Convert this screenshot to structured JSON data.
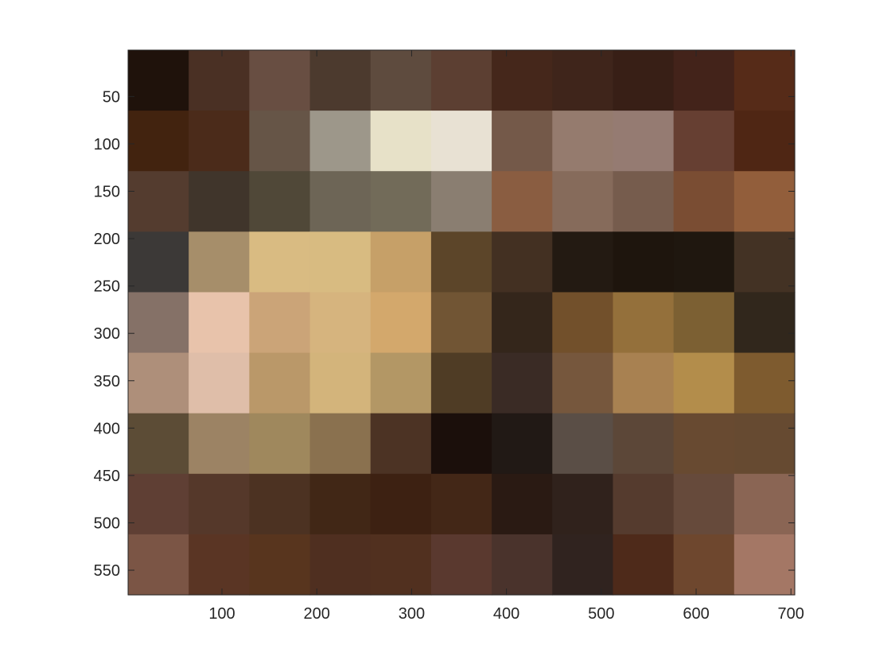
{
  "chart_data": {
    "type": "heatmap",
    "title": "",
    "xlabel": "",
    "ylabel": "",
    "xlim": [
      1,
      704
    ],
    "ylim": [
      1,
      576
    ],
    "y_reversed": true,
    "grid": false,
    "legend": "none",
    "x_ticks": [
      {
        "value": 100,
        "label": "100"
      },
      {
        "value": 200,
        "label": "200"
      },
      {
        "value": 300,
        "label": "300"
      },
      {
        "value": 400,
        "label": "400"
      },
      {
        "value": 500,
        "label": "500"
      },
      {
        "value": 600,
        "label": "600"
      },
      {
        "value": 700,
        "label": "700"
      }
    ],
    "y_ticks": [
      {
        "value": 50,
        "label": "50"
      },
      {
        "value": 100,
        "label": "100"
      },
      {
        "value": 150,
        "label": "150"
      },
      {
        "value": 200,
        "label": "200"
      },
      {
        "value": 250,
        "label": "250"
      },
      {
        "value": 300,
        "label": "300"
      },
      {
        "value": 350,
        "label": "350"
      },
      {
        "value": 400,
        "label": "400"
      },
      {
        "value": 450,
        "label": "450"
      },
      {
        "value": 500,
        "label": "500"
      },
      {
        "value": 550,
        "label": "550"
      }
    ],
    "cells": [
      [
        "#1f120b",
        "#4a3024",
        "#684e42",
        "#4c3a2e",
        "#5e4b3e",
        "#5c3f32",
        "#45271b",
        "#3f251b",
        "#381f16",
        "#43231a",
        "#562b18"
      ],
      [
        "#42230f",
        "#4b2b1a",
        "#665547",
        "#9d978a",
        "#e7e1c8",
        "#e8e1d3",
        "#745949",
        "#957b6e",
        "#957b72",
        "#663f32",
        "#4f2614"
      ],
      [
        "#543c2f",
        "#40352b",
        "#504838",
        "#6d6556",
        "#726b59",
        "#8a7e71",
        "#8a5d41",
        "#866b5b",
        "#765c4d",
        "#7a4d33",
        "#925e3b"
      ],
      [
        "#3c3937",
        "#a68e6a",
        "#d9bb82",
        "#d8bb81",
        "#c6a068",
        "#5c4529",
        "#433022",
        "#231a12",
        "#1e150d",
        "#1f170f",
        "#433224"
      ],
      [
        "#857167",
        "#e8c3ab",
        "#cba478",
        "#d6b47e",
        "#d3a86c",
        "#715534",
        "#34261b",
        "#72502b",
        "#94703b",
        "#7c6033",
        "#31271c"
      ],
      [
        "#ae8f7a",
        "#dfbea9",
        "#ba9869",
        "#d3b47b",
        "#b39765",
        "#4f3c25",
        "#3a2b25",
        "#76573d",
        "#a88151",
        "#b38d4b",
        "#7e5b2f"
      ],
      [
        "#5c4c36",
        "#9c8364",
        "#9f885d",
        "#8a714f",
        "#4c3324",
        "#1b0f0b",
        "#211915",
        "#5a4e46",
        "#5c4738",
        "#684a31",
        "#664a31"
      ],
      [
        "#5f3f34",
        "#55382a",
        "#4c3222",
        "#412716",
        "#3d2112",
        "#432717",
        "#2a1a13",
        "#30221c",
        "#553b2e",
        "#664a3b",
        "#8a6554"
      ],
      [
        "#7b5545",
        "#5a3524",
        "#58351e",
        "#4f2f20",
        "#51301f",
        "#5a392f",
        "#4a332c",
        "#30231f",
        "#4e2a1a",
        "#6e472e",
        "#a47765"
      ]
    ]
  }
}
